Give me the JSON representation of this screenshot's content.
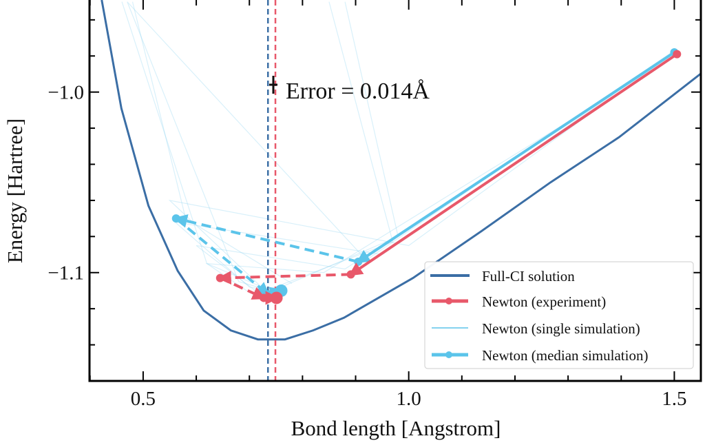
{
  "chart_data": {
    "type": "line",
    "title": "",
    "xlabel": "Bond length [Angstrom]",
    "ylabel": "Energy [Hartree]",
    "xlim": [
      0.399,
      1.55
    ],
    "ylim": [
      -1.16,
      -0.949
    ],
    "xticks": [
      0.5,
      1.0,
      1.5
    ],
    "xtick_labels": [
      "0.5",
      "1.0",
      "1.5"
    ],
    "yticks": [
      -1.0,
      -1.1
    ],
    "ytick_labels": [
      "−1.0",
      "−1.1"
    ],
    "grid": false,
    "legend_position": "bottom-right",
    "annotation": "Error = 0.014Å",
    "colors": {
      "fullci": "#3b6ea5",
      "experiment": "#e8586a",
      "simulation": "#5bc4ea",
      "single": "#8fd4f0"
    },
    "series": [
      {
        "name": "Full-CI solution",
        "x": [
          0.422,
          0.459,
          0.51,
          0.565,
          0.614,
          0.665,
          0.716,
          0.767,
          0.82,
          0.878,
          1.008,
          1.137,
          1.267,
          1.396,
          1.549
        ],
        "y": [
          -0.949,
          -1.009,
          -1.063,
          -1.099,
          -1.121,
          -1.132,
          -1.137,
          -1.137,
          -1.132,
          -1.125,
          -1.103,
          -1.077,
          -1.05,
          -1.025,
          -0.99
        ]
      },
      {
        "name": "Newton (experiment)",
        "x": [
          1.505,
          0.891,
          0.645,
          0.727,
          0.751
        ],
        "y": [
          -0.979,
          -1.101,
          -1.103,
          -1.114,
          -1.114
        ]
      },
      {
        "name": "Newton (single simulation)",
        "trajectories": [
          {
            "x": [
              1.5,
              0.95,
              0.56,
              0.7,
              0.76
            ],
            "y": [
              -0.978,
              -1.09,
              -1.072,
              -1.108,
              -1.111
            ]
          },
          {
            "x": [
              1.5,
              0.88,
              0.6,
              0.72,
              0.75
            ],
            "y": [
              -0.979,
              -1.098,
              -1.085,
              -1.112,
              -1.112
            ]
          },
          {
            "x": [
              1.5,
              0.92,
              0.47,
              0.68,
              0.74
            ],
            "y": [
              -0.977,
              -1.093,
              -0.95,
              -1.105,
              -1.11
            ]
          },
          {
            "x": [
              1.5,
              1.0,
              0.55,
              0.73,
              0.77
            ],
            "y": [
              -0.978,
              -1.085,
              -1.06,
              -1.11,
              -1.109
            ]
          },
          {
            "x": [
              1.5,
              0.84,
              0.62,
              0.7,
              0.745
            ],
            "y": [
              -0.98,
              -1.1,
              -1.095,
              -1.111,
              -1.113
            ]
          },
          {
            "x": [
              0.46,
              0.62,
              0.74,
              0.76
            ],
            "y": [
              -0.95,
              -1.095,
              -1.11,
              -1.111
            ]
          },
          {
            "x": [
              0.85,
              0.97,
              0.74
            ],
            "y": [
              -0.95,
              -1.083,
              -1.109
            ]
          },
          {
            "x": [
              0.88,
              0.98,
              0.76
            ],
            "y": [
              -0.95,
              -1.08,
              -1.108
            ]
          },
          {
            "x": [
              0.48,
              0.58,
              0.78
            ],
            "y": [
              -0.95,
              -1.07,
              -1.106
            ]
          }
        ]
      },
      {
        "name": "Newton (median simulation)",
        "x": [
          1.5,
          0.905,
          0.562,
          0.735,
          0.76
        ],
        "y": [
          -0.978,
          -1.094,
          -1.07,
          -1.112,
          -1.11
        ]
      }
    ],
    "vlines": [
      {
        "name": "Full-CI minimum",
        "x": 0.735
      },
      {
        "name": "Experiment minimum",
        "x": 0.749
      }
    ]
  }
}
